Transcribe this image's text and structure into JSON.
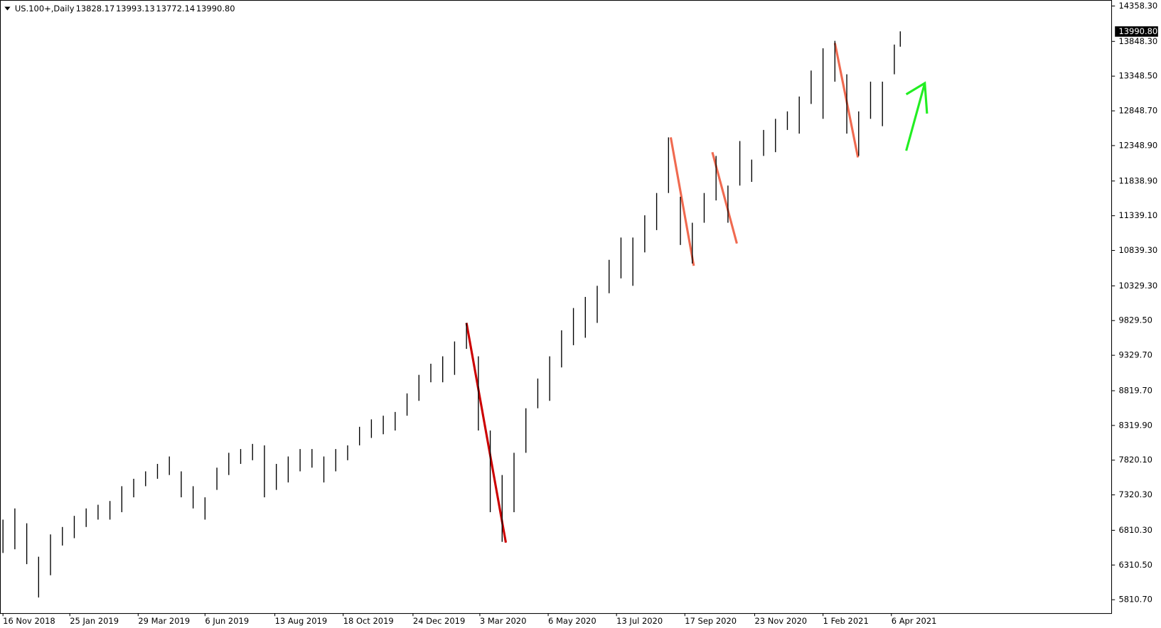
{
  "chart_data": {
    "type": "ohlc",
    "header": {
      "symbol": "US.100+,Daily",
      "open": "13828.17",
      "high": "13993.13",
      "low": "13772.14",
      "close": "13990.80"
    },
    "x": [
      0,
      8,
      16,
      24,
      32,
      40,
      48,
      56,
      64,
      72,
      80,
      88,
      96,
      104,
      112,
      120,
      128,
      136,
      144,
      152,
      160,
      168,
      176,
      184,
      192,
      200,
      208,
      216,
      224,
      232,
      240,
      248,
      256,
      264,
      272,
      280,
      288,
      296,
      304,
      312,
      320,
      328,
      336,
      344,
      352,
      360,
      368,
      376,
      384,
      392,
      400,
      408,
      416,
      424,
      432,
      440,
      448,
      456,
      464,
      472,
      480,
      488,
      496,
      504,
      512,
      520,
      528,
      536,
      544,
      552,
      560,
      568,
      576,
      584,
      592,
      600,
      604
    ],
    "series": [
      {
        "name": "high",
        "values": [
          6964,
          7125,
          6911,
          6430,
          6751,
          6858,
          7018,
          7125,
          7178,
          7232,
          7445,
          7552,
          7659,
          7766,
          7873,
          7659,
          7445,
          7285,
          7712,
          7926,
          7980,
          8054,
          8033,
          7766,
          7873,
          7980,
          7980,
          7873,
          7980,
          8033,
          8300,
          8407,
          8460,
          8514,
          8781,
          9048,
          9208,
          9315,
          9529,
          9796,
          9315,
          8247,
          7606,
          7926,
          8567,
          8995,
          9315,
          9689,
          10010,
          10170,
          10330,
          10704,
          11025,
          11025,
          11345,
          11666,
          12467,
          11612,
          11238,
          11666,
          12200,
          11773,
          12414,
          12147,
          12574,
          12734,
          12841,
          13055,
          13429,
          13749,
          13856,
          13375,
          12841,
          13269,
          13269,
          13803,
          13993.13
        ]
      },
      {
        "name": "low",
        "values": [
          6484,
          6537,
          6323,
          5843,
          6163,
          6591,
          6697,
          6858,
          6964,
          6964,
          7071,
          7285,
          7445,
          7552,
          7606,
          7285,
          7125,
          6964,
          7392,
          7606,
          7766,
          7819,
          7285,
          7392,
          7499,
          7659,
          7712,
          7499,
          7659,
          7819,
          8033,
          8140,
          8193,
          8247,
          8460,
          8674,
          8941,
          8941,
          9048,
          9422,
          8247,
          7071,
          6644,
          7071,
          7926,
          8567,
          8674,
          9155,
          9475,
          9582,
          9796,
          10223,
          10437,
          10330,
          10811,
          11132,
          11666,
          10918,
          10651,
          11238,
          11559,
          11238,
          11773,
          11826,
          12200,
          12254,
          12574,
          12521,
          12948,
          12734,
          13269,
          12521,
          12200,
          12734,
          12628,
          13375,
          13772.14
        ]
      }
    ],
    "color": "#000000",
    "current_price": {
      "value": 13990.8,
      "label": "13990.80"
    },
    "xlim": [
      -2,
      746.5
    ],
    "ylim": [
      5618,
      14444
    ],
    "xticks": [
      {
        "value": 0,
        "label": "16 Nov 2018"
      },
      {
        "value": 45,
        "label": "25 Jan 2019"
      },
      {
        "value": 91,
        "label": "29 Mar 2019"
      },
      {
        "value": 136,
        "label": "6 Jun 2019"
      },
      {
        "value": 183,
        "label": "13 Aug 2019"
      },
      {
        "value": 229,
        "label": "18 Oct 2019"
      },
      {
        "value": 276,
        "label": "24 Dec 2019"
      },
      {
        "value": 321,
        "label": "3 Mar 2020"
      },
      {
        "value": 367,
        "label": "6 May 2020"
      },
      {
        "value": 413,
        "label": "13 Jul 2020"
      },
      {
        "value": 459,
        "label": "17 Sep 2020"
      },
      {
        "value": 506,
        "label": "23 Nov 2020"
      },
      {
        "value": 552,
        "label": "1 Feb 2021"
      },
      {
        "value": 598,
        "label": "6 Apr 2021"
      }
    ],
    "yticks": [
      {
        "value": 14358.3,
        "label": "14358.30"
      },
      {
        "value": 13848.3,
        "label": "13848.30"
      },
      {
        "value": 13348.5,
        "label": "13348.50"
      },
      {
        "value": 12848.7,
        "label": "12848.70"
      },
      {
        "value": 12348.9,
        "label": "12348.90"
      },
      {
        "value": 11838.9,
        "label": "11838.90"
      },
      {
        "value": 11339.1,
        "label": "11339.10"
      },
      {
        "value": 10839.3,
        "label": "10839.30"
      },
      {
        "value": 10329.3,
        "label": "10329.30"
      },
      {
        "value": 9829.5,
        "label": "9829.50"
      },
      {
        "value": 9329.7,
        "label": "9329.70"
      },
      {
        "value": 8819.7,
        "label": "8819.70"
      },
      {
        "value": 8319.9,
        "label": "8319.90"
      },
      {
        "value": 7820.1,
        "label": "7820.10"
      },
      {
        "value": 7320.3,
        "label": "7320.30"
      },
      {
        "value": 6810.3,
        "label": "6810.30"
      },
      {
        "value": 6310.5,
        "label": "6310.50"
      },
      {
        "value": 5810.7,
        "label": "5810.70"
      }
    ],
    "grid": false
  }
}
